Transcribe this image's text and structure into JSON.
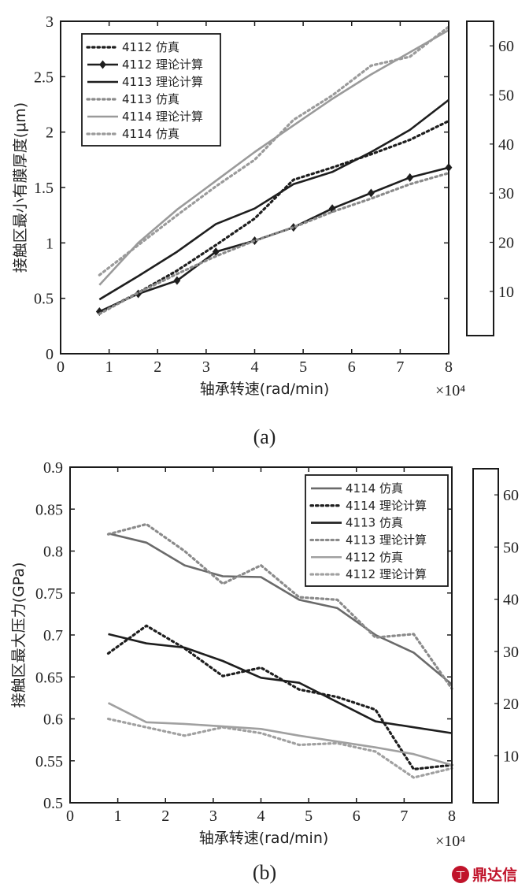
{
  "chart_data": [
    {
      "type": "line",
      "caption": "(a)",
      "xlabel": "轴承转速(rad/min)",
      "ylabel": "接触区最小有膜厚度(μm)",
      "x_multiplier": "×10⁴",
      "xlim": [
        0,
        8
      ],
      "ylim": [
        0,
        3
      ],
      "xticks": [
        "0",
        "1",
        "2",
        "3",
        "4",
        "5",
        "6",
        "7",
        "8"
      ],
      "yticks": [
        "0",
        "0.5",
        "1",
        "1.5",
        "2",
        "2.5",
        "3"
      ],
      "grid": false,
      "legend_position": "top-left",
      "colorbar": {
        "ticks": [
          "10",
          "20",
          "30",
          "40",
          "50",
          "60"
        ],
        "range": [
          1,
          65
        ]
      },
      "series": [
        {
          "name": "4112 仿真",
          "style": "dotted",
          "color": "#1e1e1e",
          "marker": "none",
          "x": [
            0.8,
            1.6,
            2.4,
            3.2,
            4.0,
            4.8,
            5.6,
            6.4,
            7.2,
            8.0
          ],
          "y": [
            0.37,
            0.55,
            0.75,
            0.98,
            1.22,
            1.57,
            1.68,
            1.8,
            1.93,
            2.1
          ]
        },
        {
          "name": "4112 理论计算",
          "style": "solid",
          "color": "#1e1e1e",
          "marker": "diamond",
          "x": [
            0.8,
            1.6,
            2.4,
            3.2,
            4.0,
            4.8,
            5.6,
            6.4,
            7.2,
            8.0
          ],
          "y": [
            0.38,
            0.54,
            0.66,
            0.92,
            1.02,
            1.14,
            1.31,
            1.45,
            1.59,
            1.68
          ]
        },
        {
          "name": "4113 理论计算",
          "style": "solid",
          "color": "#1e1e1e",
          "marker": "none",
          "x": [
            0.8,
            1.6,
            2.4,
            3.2,
            4.0,
            4.8,
            5.6,
            6.4,
            7.2,
            8.0
          ],
          "y": [
            0.49,
            0.7,
            0.92,
            1.17,
            1.31,
            1.53,
            1.64,
            1.82,
            2.02,
            2.29
          ]
        },
        {
          "name": "4113 仿真",
          "style": "dotted",
          "color": "#8a8a8a",
          "marker": "none",
          "x": [
            0.8,
            1.6,
            2.4,
            3.2,
            4.0,
            4.8,
            5.6,
            6.4,
            7.2,
            8.0
          ],
          "y": [
            0.36,
            0.55,
            0.72,
            0.88,
            1.02,
            1.14,
            1.28,
            1.4,
            1.53,
            1.63
          ]
        },
        {
          "name": "4114 理论计算",
          "style": "solid",
          "color": "#9a9a9a",
          "marker": "none",
          "x": [
            0.8,
            1.6,
            2.4,
            3.2,
            4.0,
            4.8,
            5.6,
            6.4,
            7.2,
            8.0
          ],
          "y": [
            0.62,
            1.0,
            1.3,
            1.56,
            1.82,
            2.06,
            2.3,
            2.52,
            2.72,
            2.92
          ]
        },
        {
          "name": "4114 仿真",
          "style": "dotted",
          "color": "#9a9a9a",
          "marker": "none",
          "x": [
            0.8,
            1.6,
            2.4,
            3.2,
            4.0,
            4.8,
            5.6,
            6.4,
            7.2,
            8.0
          ],
          "y": [
            0.71,
            0.98,
            1.25,
            1.51,
            1.75,
            2.11,
            2.33,
            2.6,
            2.68,
            2.95
          ]
        }
      ]
    },
    {
      "type": "line",
      "caption": "(b)",
      "xlabel": "轴承转速(rad/min)",
      "ylabel": "接触区最大压力(GPa)",
      "x_multiplier": "×10⁴",
      "xlim": [
        0,
        8
      ],
      "ylim": [
        0.5,
        0.9
      ],
      "xticks": [
        "0",
        "1",
        "2",
        "3",
        "4",
        "5",
        "6",
        "7",
        "8"
      ],
      "yticks": [
        "0.5",
        "0.55",
        "0.6",
        "0.65",
        "0.7",
        "0.75",
        "0.8",
        "0.85",
        "0.9"
      ],
      "grid": false,
      "legend_position": "top-right",
      "colorbar": {
        "ticks": [
          "10",
          "20",
          "30",
          "40",
          "50",
          "60"
        ],
        "range": [
          1,
          65
        ]
      },
      "series": [
        {
          "name": "4114 仿真",
          "style": "solid",
          "color": "#6a6a6a",
          "marker": "none",
          "x": [
            0.8,
            1.6,
            2.4,
            3.2,
            4.0,
            4.8,
            5.6,
            6.4,
            7.2,
            8.0
          ],
          "y": [
            0.821,
            0.81,
            0.783,
            0.77,
            0.769,
            0.742,
            0.732,
            0.7,
            0.679,
            0.641
          ]
        },
        {
          "name": "4114 理论计算",
          "style": "dotted",
          "color": "#1e1e1e",
          "marker": "none",
          "x": [
            0.8,
            1.6,
            2.4,
            3.2,
            4.0,
            4.8,
            5.6,
            6.4,
            7.2,
            8.0
          ],
          "y": [
            0.678,
            0.711,
            0.684,
            0.651,
            0.661,
            0.635,
            0.626,
            0.611,
            0.54,
            0.545
          ]
        },
        {
          "name": "4113 仿真",
          "style": "solid",
          "color": "#1e1e1e",
          "marker": "none",
          "x": [
            0.8,
            1.6,
            2.4,
            3.2,
            4.0,
            4.8,
            5.6,
            6.4,
            7.2,
            8.0
          ],
          "y": [
            0.701,
            0.69,
            0.685,
            0.669,
            0.649,
            0.643,
            0.62,
            0.597,
            0.59,
            0.583
          ]
        },
        {
          "name": "4113 理论计算",
          "style": "dotted",
          "color": "#8a8a8a",
          "marker": "none",
          "x": [
            0.8,
            1.6,
            2.4,
            3.2,
            4.0,
            4.8,
            5.6,
            6.4,
            7.2,
            8.0
          ],
          "y": [
            0.82,
            0.832,
            0.8,
            0.761,
            0.783,
            0.745,
            0.742,
            0.697,
            0.701,
            0.636
          ]
        },
        {
          "name": "4112 仿真",
          "style": "solid",
          "color": "#a0a0a0",
          "marker": "none",
          "x": [
            0.8,
            1.6,
            2.4,
            3.2,
            4.0,
            4.8,
            5.6,
            6.4,
            7.2,
            8.0
          ],
          "y": [
            0.619,
            0.596,
            0.594,
            0.591,
            0.588,
            0.58,
            0.573,
            0.566,
            0.558,
            0.545
          ]
        },
        {
          "name": "4112 理论计算",
          "style": "dotted",
          "color": "#a0a0a0",
          "marker": "none",
          "x": [
            0.8,
            1.6,
            2.4,
            3.2,
            4.0,
            4.8,
            5.6,
            6.4,
            7.2,
            8.0
          ],
          "y": [
            0.6,
            0.59,
            0.58,
            0.59,
            0.583,
            0.569,
            0.571,
            0.561,
            0.53,
            0.541
          ]
        }
      ]
    }
  ],
  "logo": {
    "text": "鼎达信",
    "color": "#c0132a"
  }
}
